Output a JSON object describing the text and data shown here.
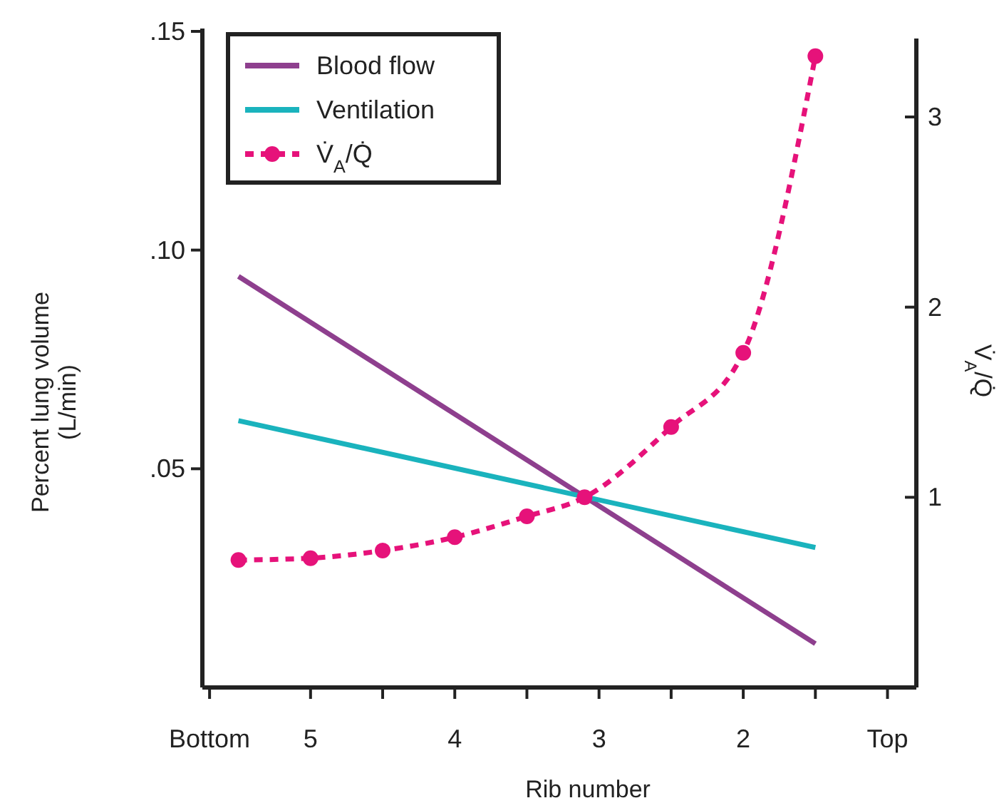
{
  "chart_data": {
    "type": "line",
    "xlabel": "Rib number",
    "ylabel": "Percent lung volume\n(L/min)",
    "y2label": "V̇$_{A}$/Q̇",
    "xlim": [
      5.75,
      0.8
    ],
    "xticks": [
      {
        "value": 5.7,
        "label": "Bottom"
      },
      5,
      {
        "value": 4.5,
        "label": null
      },
      4,
      {
        "value": 3.5,
        "label": null
      },
      3,
      {
        "value": 2.5,
        "label": null
      },
      2,
      {
        "value": 1.5,
        "label": null
      },
      {
        "value": 1,
        "label": "Top"
      }
    ],
    "ylim": [
      0,
      0.15
    ],
    "yticks": [
      {
        "value": 0.05,
        "label": ".05"
      },
      {
        "value": 0.1,
        "label": ".10"
      },
      {
        "value": 0.15,
        "label": ".15"
      }
    ],
    "y2lim": [
      0,
      3.45
    ],
    "y2ticks": [
      1,
      2,
      3
    ],
    "legend": "top left",
    "series": [
      {
        "name": "Blood flow",
        "color": "#8e3f8e",
        "x": [
          5.5,
          1.5
        ],
        "values": [
          0.094,
          0.01
        ],
        "marker": "none",
        "line_style": "solid"
      },
      {
        "name": "Ventilation",
        "color": "#1ab3bd",
        "x": [
          5.5,
          1.5
        ],
        "values": [
          0.061,
          0.032
        ],
        "marker": "none",
        "line_style": "solid"
      },
      {
        "name": "V̇$_{A}$/Q̇",
        "color": "#e6127a",
        "axis": "y2",
        "x": [
          5.5,
          5,
          4.5,
          4,
          3.5,
          3.1,
          2.5,
          2,
          1.5
        ],
        "values": [
          0.67,
          0.68,
          0.72,
          0.79,
          0.9,
          1.0,
          1.37,
          1.76,
          3.32
        ],
        "marker": "circle",
        "line_style": "dashed"
      }
    ]
  }
}
